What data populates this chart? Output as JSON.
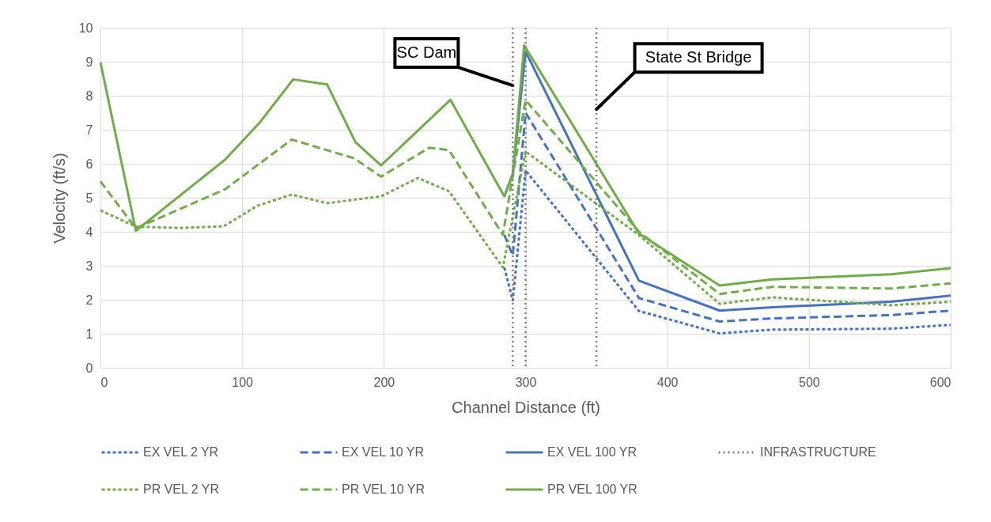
{
  "chart_data": {
    "type": "line",
    "xlabel": "Channel Distance (ft)",
    "ylabel": "Velocity (ft/s)",
    "xlim": [
      0,
      600
    ],
    "xticks": [
      0,
      100,
      200,
      300,
      400,
      500,
      600
    ],
    "ylim": [
      0,
      10
    ],
    "yticks": [
      0,
      1,
      2,
      3,
      4,
      5,
      6,
      7,
      8,
      9,
      10
    ],
    "grid": true,
    "legend": "bottom",
    "marker": "none",
    "series": [
      {
        "name": "EX VEL 2 YR",
        "color": "#4472c4",
        "line_style": "dashed",
        "x": [
          285,
          291,
          300,
          380,
          437,
          474,
          558,
          600
        ],
        "values": [
          2.95,
          1.98,
          5.8,
          1.67,
          1.01,
          1.12,
          1.15,
          1.26
        ]
      },
      {
        "name": "EX VEL 10 YR",
        "color": "#4472c4",
        "line_style": "dashed",
        "x": [
          285,
          291,
          300,
          380,
          437,
          474,
          558,
          600
        ],
        "values": [
          3.91,
          3.3,
          7.5,
          2.05,
          1.36,
          1.45,
          1.55,
          1.68
        ]
      },
      {
        "name": "EX VEL 100 YR",
        "color": "#4472c4",
        "line_style": "solid",
        "x": [
          285,
          291,
          300,
          380,
          437,
          474,
          558,
          600
        ],
        "values": [
          5.04,
          5.7,
          9.3,
          2.56,
          1.68,
          1.78,
          1.94,
          2.12
        ]
      },
      {
        "name": "PR VEL 2 YR",
        "color": "#70ad47",
        "line_style": "dashed",
        "x": [
          0,
          25,
          56,
          87,
          111,
          135,
          160,
          198,
          224,
          246,
          284,
          300,
          380,
          437,
          474,
          558,
          600
        ],
        "values": [
          4.63,
          4.15,
          4.11,
          4.16,
          4.77,
          5.09,
          4.84,
          5.04,
          5.58,
          5.19,
          2.95,
          6.36,
          3.9,
          1.88,
          2.07,
          1.84,
          1.94
        ]
      },
      {
        "name": "PR VEL 10 YR",
        "color": "#70ad47",
        "line_style": "dashed",
        "x": [
          0,
          25,
          88,
          135,
          179,
          198,
          232,
          246,
          284,
          300,
          380,
          437,
          474,
          558,
          600
        ],
        "values": [
          5.48,
          4.1,
          5.25,
          6.71,
          6.16,
          5.62,
          6.47,
          6.4,
          3.91,
          7.87,
          4.0,
          2.17,
          2.38,
          2.33,
          2.48
        ]
      },
      {
        "name": "PR VEL 100 YR",
        "color": "#70ad47",
        "line_style": "solid",
        "x": [
          0,
          25,
          88,
          112,
          136,
          160,
          180,
          198,
          247,
          285,
          291,
          299,
          380,
          437,
          474,
          558,
          600
        ],
        "values": [
          8.98,
          4.03,
          6.12,
          7.19,
          8.48,
          8.33,
          6.63,
          5.95,
          7.88,
          5.04,
          5.7,
          9.48,
          3.95,
          2.42,
          2.6,
          2.75,
          2.93
        ]
      }
    ],
    "ref_lines": [
      {
        "axis": "x",
        "value": 291,
        "label": "INFRASTRUCTURE",
        "color": "#7f7f7f",
        "line_style": "dotted"
      },
      {
        "axis": "x",
        "value": 300,
        "label": null,
        "color": "#7f7f7f",
        "line_style": "dotted"
      },
      {
        "axis": "x",
        "value": 350,
        "label": null,
        "color": "#7f7f7f",
        "line_style": "dotted"
      }
    ],
    "annotations": [
      {
        "text": "SC Dam",
        "x": 291,
        "y": 8.3
      },
      {
        "text": "State St Bridge",
        "x": 350,
        "y": 7.6
      }
    ]
  }
}
